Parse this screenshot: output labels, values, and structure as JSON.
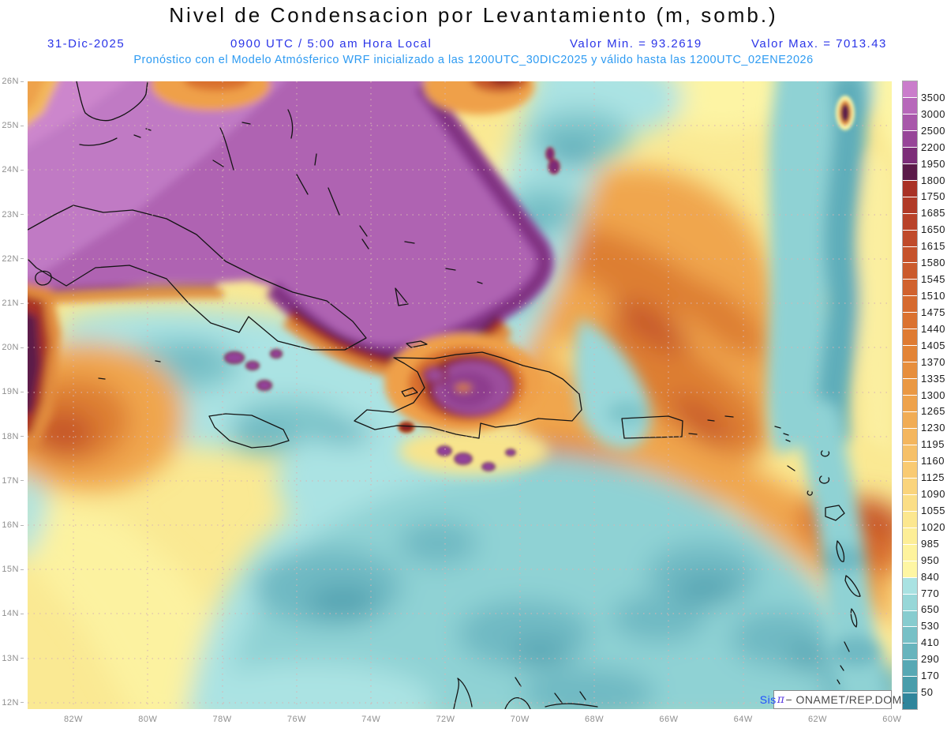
{
  "header": {
    "title": "Nivel de Condensacion por Levantamiento (m, somb.)",
    "date": "31-Dic-2025",
    "time": "0900 UTC / 5:00 am Hora Local",
    "min_label": "Valor Min. = 93.2619",
    "max_label": "Valor Max. = 7013.43",
    "forecast_line": "Pronóstico con el Modelo Atmósferico WRF inicializado a las 1200UTC_30DIC2025 y válido hasta las  1200UTC_02ENE2026"
  },
  "map": {
    "lat_labels": [
      "26N",
      "25N",
      "24N",
      "23N",
      "22N",
      "21N",
      "20N",
      "19N",
      "18N",
      "17N",
      "16N",
      "15N",
      "14N",
      "13N",
      "12N"
    ],
    "lon_labels": [
      "82W",
      "80W",
      "78W",
      "76W",
      "74W",
      "72W",
      "70W",
      "68W",
      "66W",
      "64W",
      "62W",
      "60W"
    ]
  },
  "colorbar": {
    "tick_labels": [
      "3500",
      "3000",
      "2500",
      "2200",
      "1950",
      "1800",
      "1750",
      "1685",
      "1650",
      "1615",
      "1580",
      "1545",
      "1510",
      "1475",
      "1440",
      "1405",
      "1370",
      "1335",
      "1300",
      "1265",
      "1230",
      "1195",
      "1160",
      "1125",
      "1090",
      "1055",
      "1020",
      "985",
      "950",
      "840",
      "770",
      "650",
      "530",
      "410",
      "290",
      "170",
      "50"
    ],
    "segment_colors": [
      "#CA7DCB",
      "#B768BA",
      "#A857AA",
      "#974598",
      "#7C2D78",
      "#5B1A49",
      "#A93125",
      "#B13A27",
      "#B94229",
      "#C04A2A",
      "#C6522B",
      "#CB5A2C",
      "#D1622E",
      "#D66A2F",
      "#DB7230",
      "#DF7B32",
      "#E38436",
      "#E78E3C",
      "#EA9843",
      "#EEA24B",
      "#F1AC54",
      "#F4B65E",
      "#F6C068",
      "#F9CA72",
      "#FAD47C",
      "#FBDE86",
      "#FCE78F",
      "#FDEE97",
      "#FEF39D",
      "#FEF6A3",
      "#A9E2E2",
      "#97D7D8",
      "#87CCCF",
      "#77C0C6",
      "#67B4BD",
      "#57A8B4",
      "#499DAB",
      "#2F859B"
    ]
  },
  "watermark": {
    "brand": "Sis",
    "pi_symbol": "π",
    "org": "− ONAMET/REP.DOM."
  },
  "chart_data": {
    "type": "heatmap",
    "title": "Nivel de Condensacion por Levantamiento (m, somb.)",
    "units": "m",
    "valid_date": "31-Dic-2025",
    "valid_time": "0900 UTC / 5:00 am Hora Local",
    "value_min": 93.2619,
    "value_max": 7013.43,
    "model_info": "WRF inicializado 1200UTC_30DIC2025, válido hasta 1200UTC_02ENE2026",
    "lat_range": [
      "12N",
      "26N"
    ],
    "lon_range": [
      "82W",
      "60W"
    ],
    "contour_levels": [
      50,
      170,
      290,
      410,
      530,
      650,
      770,
      840,
      950,
      985,
      1020,
      1055,
      1090,
      1125,
      1160,
      1195,
      1230,
      1265,
      1300,
      1335,
      1370,
      1405,
      1440,
      1475,
      1510,
      1545,
      1580,
      1615,
      1650,
      1685,
      1750,
      1800,
      1950,
      2200,
      2500,
      3000,
      3500
    ],
    "legend_position": "right"
  }
}
